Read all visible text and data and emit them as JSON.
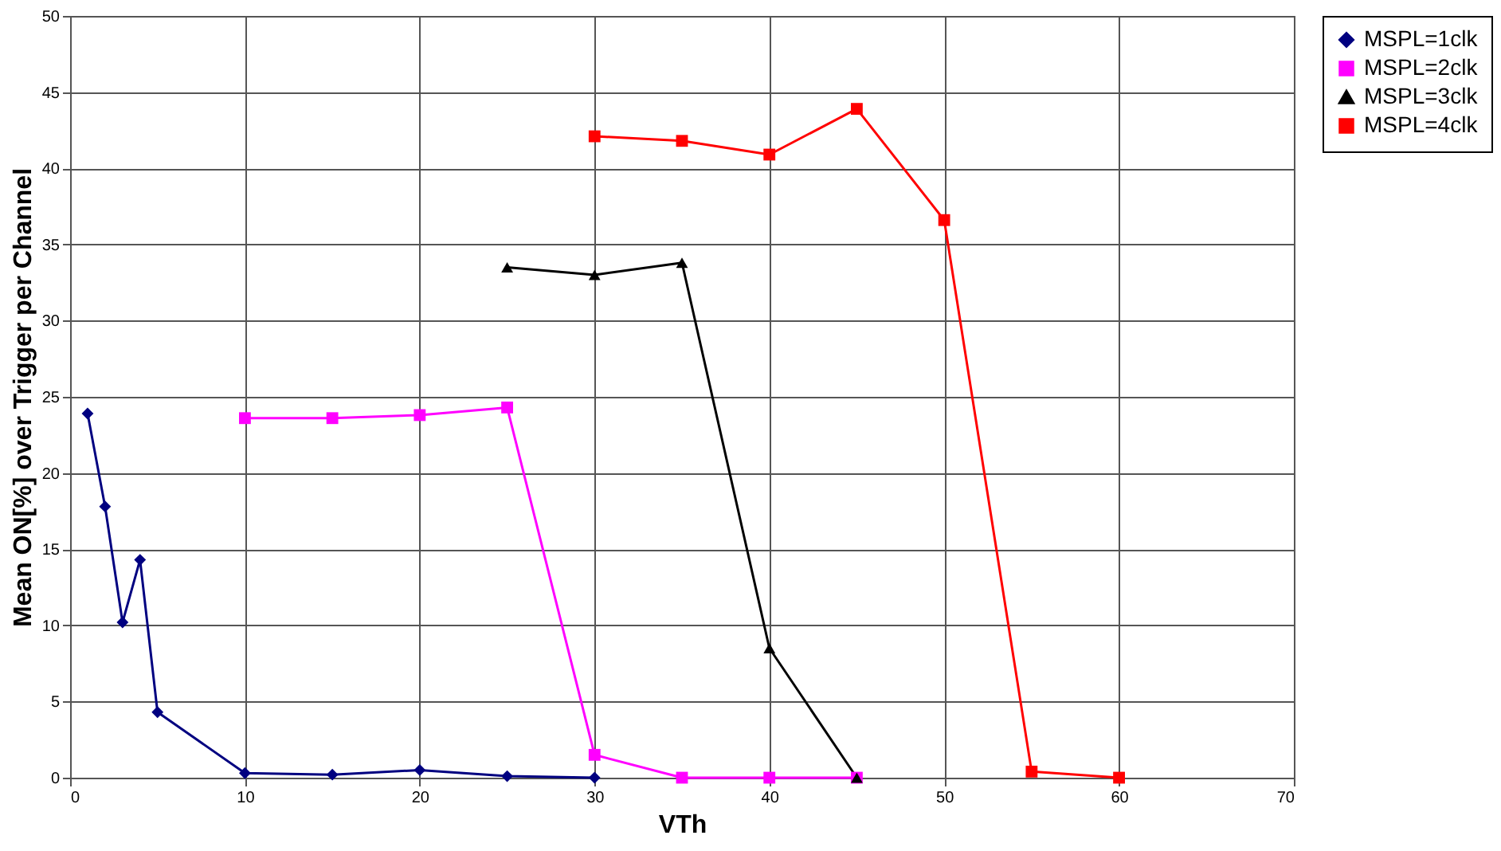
{
  "chart_data": {
    "type": "line",
    "xlabel": "VTh",
    "ylabel": "Mean ON[%] over Trigger per Channel",
    "xlim": [
      0,
      70
    ],
    "ylim": [
      0,
      50
    ],
    "xticks": [
      0,
      10,
      20,
      30,
      40,
      50,
      60,
      70
    ],
    "yticks": [
      0,
      5,
      10,
      15,
      20,
      25,
      30,
      35,
      40,
      45,
      50
    ],
    "grid": true,
    "legend": "right",
    "series": [
      {
        "name": "MSPL=1clk",
        "color": "#000080",
        "marker": "diamond",
        "x": [
          1,
          2,
          3,
          4,
          5,
          10,
          15,
          20,
          25,
          30
        ],
        "values": [
          23.9,
          17.8,
          10.2,
          14.3,
          4.3,
          0.3,
          0.2,
          0.5,
          0.1,
          0
        ]
      },
      {
        "name": "MSPL=2clk",
        "color": "#ff00ff",
        "marker": "square",
        "x": [
          10,
          15,
          20,
          25,
          30,
          35,
          40,
          45
        ],
        "values": [
          23.6,
          23.6,
          23.8,
          24.3,
          1.5,
          0,
          0,
          0
        ]
      },
      {
        "name": "MSPL=3clk",
        "color": "#000000",
        "marker": "triangle",
        "x": [
          25,
          30,
          35,
          40,
          45
        ],
        "values": [
          33.5,
          33.0,
          33.8,
          8.5,
          0
        ]
      },
      {
        "name": "MSPL=4clk",
        "color": "#ff0000",
        "marker": "square",
        "x": [
          30,
          35,
          40,
          45,
          50,
          55,
          60
        ],
        "values": [
          42.1,
          41.8,
          40.9,
          43.9,
          36.6,
          0.4,
          0
        ]
      }
    ]
  }
}
